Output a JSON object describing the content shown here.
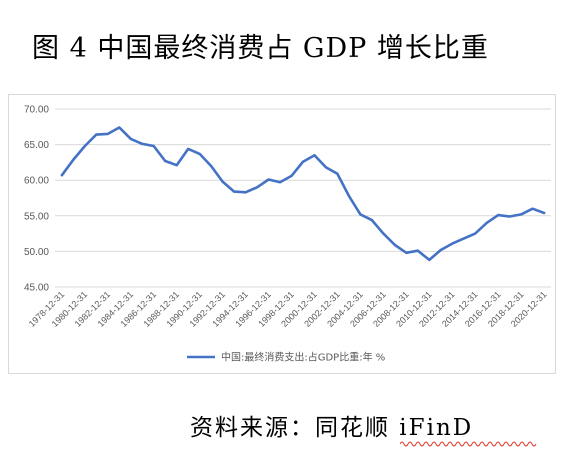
{
  "figure": {
    "title": "图 4 中国最终消费占 GDP 增长比重",
    "source": "资料来源：同花顺 iFinD"
  },
  "chart_data": {
    "type": "line",
    "title": "",
    "xlabel": "",
    "ylabel": "",
    "ylim": [
      45,
      70
    ],
    "yticks": [
      "45.00",
      "50.00",
      "55.00",
      "60.00",
      "65.00",
      "70.00"
    ],
    "x": [
      "1978-12-31",
      "1979-12-31",
      "1980-12-31",
      "1981-12-31",
      "1982-12-31",
      "1983-12-31",
      "1984-12-31",
      "1985-12-31",
      "1986-12-31",
      "1987-12-31",
      "1988-12-31",
      "1989-12-31",
      "1990-12-31",
      "1991-12-31",
      "1992-12-31",
      "1993-12-31",
      "1994-12-31",
      "1995-12-31",
      "1996-12-31",
      "1997-12-31",
      "1998-12-31",
      "1999-12-31",
      "2000-12-31",
      "2001-12-31",
      "2002-12-31",
      "2003-12-31",
      "2004-12-31",
      "2005-12-31",
      "2006-12-31",
      "2007-12-31",
      "2008-12-31",
      "2009-12-31",
      "2010-12-31",
      "2011-12-31",
      "2012-12-31",
      "2013-12-31",
      "2014-12-31",
      "2015-12-31",
      "2016-12-31",
      "2017-12-31",
      "2018-12-31",
      "2019-12-31",
      "2020-12-31"
    ],
    "xtick_labels": [
      "1978-12-31",
      "1980-12-31",
      "1982-12-31",
      "1984-12-31",
      "1986-12-31",
      "1988-12-31",
      "1990-12-31",
      "1992-12-31",
      "1994-12-31",
      "1996-12-31",
      "1998-12-31",
      "2000-12-31",
      "2002-12-31",
      "2004-12-31",
      "2006-12-31",
      "2008-12-31",
      "2010-12-31",
      "2012-12-31",
      "2014-12-31",
      "2016-12-31",
      "2018-12-31",
      "2020-12-31"
    ],
    "series": [
      {
        "name": "中国:最终消费支出:占GDP比重:年 %",
        "color": "#4472c4",
        "values": [
          60.7,
          62.9,
          64.8,
          66.4,
          66.5,
          67.4,
          65.8,
          65.1,
          64.8,
          62.7,
          62.1,
          64.4,
          63.7,
          62.0,
          59.8,
          58.4,
          58.3,
          59.0,
          60.1,
          59.7,
          60.6,
          62.6,
          63.5,
          61.8,
          60.9,
          57.8,
          55.2,
          54.4,
          52.5,
          50.9,
          49.8,
          50.1,
          48.8,
          50.2,
          51.1,
          51.8,
          52.5,
          54.0,
          55.1,
          54.9,
          55.2,
          56.0,
          55.4
        ]
      }
    ],
    "grid": true,
    "legend_position": "bottom"
  }
}
